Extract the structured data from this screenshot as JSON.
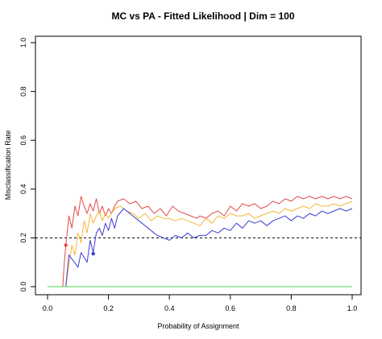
{
  "chart_data": {
    "type": "line",
    "title": "MC vs PA - Fitted Likelihood | Dim = 100",
    "xlabel": "Probability of Assignment",
    "ylabel": "Misclassification Rate",
    "xlim": [
      0.0,
      1.0
    ],
    "ylim": [
      0.0,
      1.0
    ],
    "xticks": [
      "0.0",
      "0.2",
      "0.4",
      "0.6",
      "0.8",
      "1.0"
    ],
    "yticks": [
      "0.0",
      "0.2",
      "0.4",
      "0.6",
      "0.8",
      "1.0"
    ],
    "grid": false,
    "hline": {
      "y": 0.2,
      "style": "dashed",
      "color": "#000000"
    },
    "series": [
      {
        "color": "#e34a4a",
        "x": [
          0.0,
          0.05,
          0.055,
          0.06,
          0.07,
          0.08,
          0.09,
          0.1,
          0.11,
          0.12,
          0.13,
          0.14,
          0.15,
          0.16,
          0.17,
          0.18,
          0.19,
          0.2,
          0.21,
          0.22,
          0.23,
          0.25,
          0.27,
          0.29,
          0.31,
          0.33,
          0.35,
          0.37,
          0.39,
          0.41,
          0.43,
          0.45,
          0.47,
          0.49,
          0.5,
          0.52,
          0.54,
          0.56,
          0.58,
          0.6,
          0.62,
          0.64,
          0.66,
          0.68,
          0.7,
          0.72,
          0.74,
          0.76,
          0.78,
          0.8,
          0.82,
          0.84,
          0.86,
          0.88,
          0.9,
          0.92,
          0.94,
          0.96,
          0.98,
          1.0
        ],
        "y": [
          0.0,
          0.0,
          0.1,
          0.17,
          0.29,
          0.24,
          0.33,
          0.29,
          0.37,
          0.33,
          0.3,
          0.34,
          0.31,
          0.36,
          0.3,
          0.33,
          0.29,
          0.32,
          0.3,
          0.33,
          0.35,
          0.36,
          0.34,
          0.35,
          0.32,
          0.33,
          0.3,
          0.32,
          0.29,
          0.33,
          0.31,
          0.3,
          0.29,
          0.28,
          0.29,
          0.28,
          0.3,
          0.31,
          0.29,
          0.33,
          0.31,
          0.34,
          0.33,
          0.34,
          0.32,
          0.33,
          0.35,
          0.34,
          0.36,
          0.35,
          0.37,
          0.36,
          0.37,
          0.36,
          0.37,
          0.36,
          0.37,
          0.36,
          0.37,
          0.36
        ],
        "marker": {
          "x": 0.06,
          "y": 0.17
        }
      },
      {
        "color": "#f5b73b",
        "x": [
          0.0,
          0.05,
          0.06,
          0.07,
          0.08,
          0.09,
          0.1,
          0.11,
          0.12,
          0.13,
          0.14,
          0.15,
          0.16,
          0.17,
          0.18,
          0.19,
          0.2,
          0.22,
          0.24,
          0.26,
          0.28,
          0.3,
          0.32,
          0.34,
          0.36,
          0.38,
          0.4,
          0.42,
          0.44,
          0.46,
          0.48,
          0.5,
          0.52,
          0.54,
          0.56,
          0.58,
          0.6,
          0.62,
          0.64,
          0.66,
          0.68,
          0.7,
          0.72,
          0.74,
          0.76,
          0.78,
          0.8,
          0.82,
          0.84,
          0.86,
          0.88,
          0.9,
          0.92,
          0.94,
          0.96,
          0.98,
          1.0
        ],
        "y": [
          0.0,
          0.0,
          0.0,
          0.09,
          0.17,
          0.13,
          0.22,
          0.18,
          0.27,
          0.22,
          0.3,
          0.26,
          0.29,
          0.31,
          0.27,
          0.3,
          0.28,
          0.32,
          0.33,
          0.31,
          0.3,
          0.28,
          0.3,
          0.27,
          0.29,
          0.28,
          0.28,
          0.27,
          0.28,
          0.27,
          0.26,
          0.25,
          0.28,
          0.26,
          0.29,
          0.28,
          0.3,
          0.29,
          0.29,
          0.3,
          0.28,
          0.29,
          0.3,
          0.31,
          0.3,
          0.32,
          0.31,
          0.32,
          0.33,
          0.32,
          0.34,
          0.33,
          0.33,
          0.34,
          0.33,
          0.34,
          0.35
        ]
      },
      {
        "color": "#3b3bd6",
        "x": [
          0.0,
          0.05,
          0.06,
          0.07,
          0.1,
          0.11,
          0.13,
          0.14,
          0.15,
          0.16,
          0.17,
          0.18,
          0.19,
          0.2,
          0.21,
          0.22,
          0.23,
          0.25,
          0.28,
          0.3,
          0.32,
          0.34,
          0.36,
          0.38,
          0.4,
          0.42,
          0.44,
          0.46,
          0.48,
          0.5,
          0.52,
          0.54,
          0.56,
          0.58,
          0.6,
          0.62,
          0.64,
          0.66,
          0.68,
          0.7,
          0.72,
          0.74,
          0.76,
          0.78,
          0.8,
          0.82,
          0.84,
          0.86,
          0.88,
          0.9,
          0.92,
          0.94,
          0.96,
          0.98,
          1.0
        ],
        "y": [
          0.0,
          0.0,
          0.0,
          0.13,
          0.08,
          0.14,
          0.1,
          0.19,
          0.14,
          0.22,
          0.24,
          0.21,
          0.26,
          0.23,
          0.28,
          0.24,
          0.29,
          0.32,
          0.29,
          0.27,
          0.25,
          0.23,
          0.21,
          0.2,
          0.19,
          0.21,
          0.2,
          0.22,
          0.2,
          0.21,
          0.21,
          0.23,
          0.22,
          0.24,
          0.23,
          0.26,
          0.24,
          0.27,
          0.26,
          0.27,
          0.25,
          0.27,
          0.28,
          0.29,
          0.27,
          0.29,
          0.28,
          0.3,
          0.29,
          0.31,
          0.3,
          0.31,
          0.32,
          0.31,
          0.32
        ],
        "marker": {
          "x": 0.15,
          "y": 0.135
        }
      },
      {
        "color": "#4cd64c",
        "x": [
          0.0,
          1.0
        ],
        "y": [
          0.0,
          0.0
        ]
      }
    ]
  }
}
